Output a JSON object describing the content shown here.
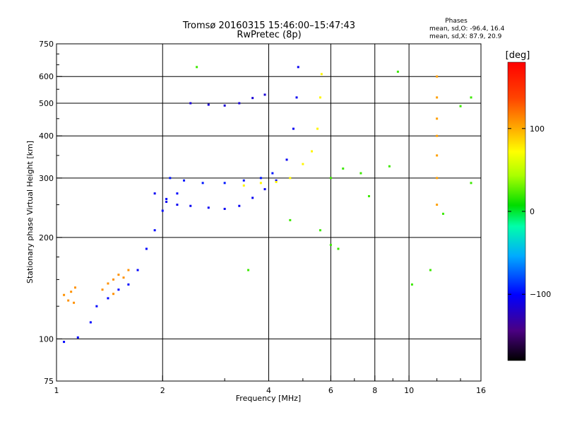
{
  "chart_data": {
    "type": "scatter",
    "title_line1": "Tromsø 20160315 15:46:00–15:47:43",
    "title_line2": "RwPretec (8p)",
    "xlabel": "Frequency [MHz]",
    "ylabel": "Stationary phase Virtual Height [km]",
    "xscale": "log",
    "yscale": "log",
    "xlim": [
      1,
      16
    ],
    "ylim": [
      75,
      750
    ],
    "x_ticks": [
      1,
      2,
      4,
      6,
      8,
      10,
      16
    ],
    "x_minor_ticks": [
      3,
      5,
      7,
      9,
      12,
      14
    ],
    "y_ticks": [
      75,
      100,
      200,
      300,
      400,
      500,
      600,
      750
    ],
    "y_minor_ticks": [
      125,
      150,
      175,
      250,
      350,
      450,
      550,
      650,
      700
    ],
    "grid": true,
    "stats": {
      "heading": "Phases",
      "line_o": "mean, sd,O: -96.4, 16.4",
      "line_x": "mean, sd,X: 87.9, 20.9"
    },
    "colorbar": {
      "label": "[deg]",
      "range": [
        -180,
        180
      ],
      "ticks": [
        {
          "value": 100,
          "label": "100"
        },
        {
          "value": 0,
          "label": "0"
        },
        {
          "value": -100,
          "label": "−100"
        }
      ]
    },
    "series": [
      {
        "trace": "low-yellow-cluster",
        "phase": 110,
        "points": [
          [
            1.05,
            135
          ],
          [
            1.1,
            138
          ],
          [
            1.13,
            142
          ],
          [
            1.08,
            130
          ],
          [
            1.12,
            128
          ],
          [
            1.35,
            140
          ],
          [
            1.4,
            146
          ],
          [
            1.45,
            150
          ],
          [
            1.5,
            155
          ],
          [
            1.55,
            152
          ],
          [
            1.45,
            136
          ],
          [
            1.6,
            160
          ]
        ]
      },
      {
        "trace": "low-blue-band",
        "phase": -100,
        "points": [
          [
            1.05,
            98
          ],
          [
            1.15,
            101
          ],
          [
            1.25,
            112
          ],
          [
            1.3,
            125
          ],
          [
            1.4,
            132
          ],
          [
            1.5,
            140
          ],
          [
            1.6,
            145
          ],
          [
            1.7,
            160
          ],
          [
            1.8,
            185
          ],
          [
            1.9,
            210
          ],
          [
            2,
            240
          ],
          [
            2.05,
            260
          ],
          [
            2.2,
            270
          ]
        ]
      },
      {
        "trace": "F-trace-O",
        "phase": -105,
        "points": [
          [
            1.9,
            270
          ],
          [
            2.05,
            255
          ],
          [
            2.2,
            250
          ],
          [
            2.4,
            248
          ],
          [
            2.7,
            245
          ],
          [
            3,
            243
          ],
          [
            3.3,
            248
          ],
          [
            3.6,
            262
          ],
          [
            3.9,
            278
          ],
          [
            4.2,
            295
          ],
          [
            4.5,
            340
          ],
          [
            4.7,
            420
          ],
          [
            4.8,
            520
          ],
          [
            4.85,
            640
          ]
        ]
      },
      {
        "trace": "F-upper-O",
        "phase": -95,
        "points": [
          [
            2.1,
            300
          ],
          [
            2.3,
            295
          ],
          [
            2.6,
            290
          ],
          [
            3,
            290
          ],
          [
            3.4,
            295
          ],
          [
            3.8,
            300
          ],
          [
            4.1,
            310
          ]
        ]
      },
      {
        "trace": "F-trace-X",
        "phase": 75,
        "points": [
          [
            3.4,
            285
          ],
          [
            3.8,
            290
          ],
          [
            4.2,
            292
          ],
          [
            4.6,
            300
          ],
          [
            5,
            330
          ],
          [
            5.3,
            360
          ],
          [
            5.5,
            420
          ],
          [
            5.6,
            520
          ],
          [
            5.65,
            610
          ]
        ]
      },
      {
        "trace": "multi-hop",
        "phase": -115,
        "points": [
          [
            2.4,
            500
          ],
          [
            2.7,
            495
          ],
          [
            3,
            492
          ],
          [
            3.3,
            500
          ],
          [
            3.6,
            518
          ],
          [
            3.9,
            530
          ]
        ]
      },
      {
        "trace": "vertical-12MHz",
        "phase": 105,
        "points": [
          [
            12,
            250
          ],
          [
            12,
            300
          ],
          [
            12,
            350
          ],
          [
            12,
            400
          ],
          [
            12,
            450
          ],
          [
            12,
            520
          ],
          [
            12,
            600
          ]
        ]
      },
      {
        "trace": "scattered-points",
        "phase": 20,
        "points": [
          [
            6,
            300
          ],
          [
            6.3,
            185
          ],
          [
            6.5,
            320
          ],
          [
            7.3,
            310
          ],
          [
            7.7,
            265
          ],
          [
            8.8,
            325
          ],
          [
            9.3,
            620
          ],
          [
            10.2,
            145
          ],
          [
            11.5,
            160
          ],
          [
            12.5,
            235
          ],
          [
            14,
            490
          ],
          [
            15,
            290
          ],
          [
            15,
            520
          ],
          [
            2.5,
            640
          ],
          [
            3.5,
            160
          ],
          [
            4.6,
            225
          ],
          [
            5.6,
            210
          ],
          [
            6,
            190
          ]
        ]
      }
    ]
  }
}
